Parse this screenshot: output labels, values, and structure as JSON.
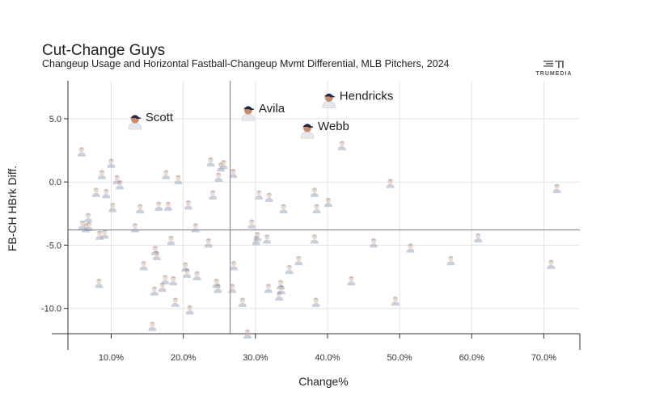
{
  "chart_data": {
    "type": "scatter",
    "title": "Cut-Change Guys",
    "subtitle": "Changeup Usage and Horizontal Fastball-Changeup Mvmt Differential, MLB Pitchers, 2024",
    "xlabel": "Change%",
    "ylabel": "FB-CH HBrk Diff.",
    "xlim": [
      4.0,
      75.0
    ],
    "ylim": [
      -12.0,
      8.0
    ],
    "x_ticks": [
      10,
      20,
      30,
      40,
      50,
      60,
      70
    ],
    "x_tick_labels": [
      "10.0%",
      "20.0%",
      "30.0%",
      "40.0%",
      "50.0%",
      "60.0%",
      "70.0%"
    ],
    "y_ticks": [
      5,
      0,
      -5,
      -10
    ],
    "y_tick_labels": [
      "5.0",
      "0.0",
      "-5.0",
      "-10.0"
    ],
    "reference_lines": {
      "x_mean": 26.5,
      "y_mean": -3.8
    },
    "highlighted": [
      {
        "name": "Scott",
        "x": 13.3,
        "y": 4.8
      },
      {
        "name": "Avila",
        "x": 29.0,
        "y": 5.5
      },
      {
        "name": "Hendricks",
        "x": 40.2,
        "y": 6.5
      },
      {
        "name": "Webb",
        "x": 37.2,
        "y": 4.1
      }
    ],
    "points": [
      [
        5.9,
        2.4
      ],
      [
        6.0,
        -3.4
      ],
      [
        6.5,
        -3.6
      ],
      [
        6.8,
        -2.8
      ],
      [
        6.9,
        -3.5
      ],
      [
        7.9,
        -0.8
      ],
      [
        8.3,
        -8.0
      ],
      [
        8.4,
        -4.2
      ],
      [
        8.7,
        0.6
      ],
      [
        9.1,
        -4.1
      ],
      [
        9.3,
        -0.9
      ],
      [
        10.0,
        1.5
      ],
      [
        10.2,
        -2.0
      ],
      [
        10.8,
        0.2
      ],
      [
        11.2,
        -0.2
      ],
      [
        13.3,
        -3.6
      ],
      [
        14.0,
        -2.1
      ],
      [
        14.5,
        -6.6
      ],
      [
        15.7,
        -11.4
      ],
      [
        16.0,
        -8.6
      ],
      [
        16.1,
        -5.4
      ],
      [
        16.3,
        -5.8
      ],
      [
        16.6,
        -1.9
      ],
      [
        17.1,
        -8.3
      ],
      [
        17.5,
        -7.7
      ],
      [
        17.6,
        0.6
      ],
      [
        17.9,
        -1.9
      ],
      [
        18.3,
        -4.6
      ],
      [
        18.6,
        -7.8
      ],
      [
        18.9,
        -9.5
      ],
      [
        19.3,
        0.2
      ],
      [
        20.3,
        -6.7
      ],
      [
        20.5,
        -7.2
      ],
      [
        20.7,
        -1.8
      ],
      [
        20.9,
        -10.1
      ],
      [
        21.7,
        -3.6
      ],
      [
        21.9,
        -7.4
      ],
      [
        23.5,
        -4.8
      ],
      [
        23.8,
        1.6
      ],
      [
        24.1,
        -1.0
      ],
      [
        24.6,
        -8.0
      ],
      [
        24.8,
        -8.4
      ],
      [
        24.9,
        0.4
      ],
      [
        25.2,
        1.2
      ],
      [
        25.6,
        1.4
      ],
      [
        26.8,
        -8.4
      ],
      [
        26.9,
        0.7
      ],
      [
        27.0,
        -6.6
      ],
      [
        28.2,
        -9.5
      ],
      [
        28.9,
        -12.0
      ],
      [
        29.5,
        -3.3
      ],
      [
        30.1,
        -4.6
      ],
      [
        30.3,
        -4.3
      ],
      [
        30.5,
        -1.0
      ],
      [
        31.6,
        -4.5
      ],
      [
        31.8,
        -8.4
      ],
      [
        31.9,
        -1.2
      ],
      [
        33.3,
        -9.0
      ],
      [
        33.5,
        -8.1
      ],
      [
        33.6,
        -8.5
      ],
      [
        33.9,
        -2.1
      ],
      [
        34.7,
        -6.9
      ],
      [
        36.0,
        -6.2
      ],
      [
        38.2,
        -0.8
      ],
      [
        38.2,
        -4.5
      ],
      [
        38.4,
        -9.5
      ],
      [
        38.5,
        -2.1
      ],
      [
        40.1,
        -1.6
      ],
      [
        42.0,
        2.9
      ],
      [
        43.3,
        -7.8
      ],
      [
        46.4,
        -4.8
      ],
      [
        48.7,
        -0.1
      ],
      [
        49.4,
        -9.4
      ],
      [
        51.5,
        -5.2
      ],
      [
        57.1,
        -6.2
      ],
      [
        60.9,
        -4.4
      ],
      [
        71.0,
        -6.5
      ],
      [
        71.8,
        -0.5
      ]
    ]
  }
}
